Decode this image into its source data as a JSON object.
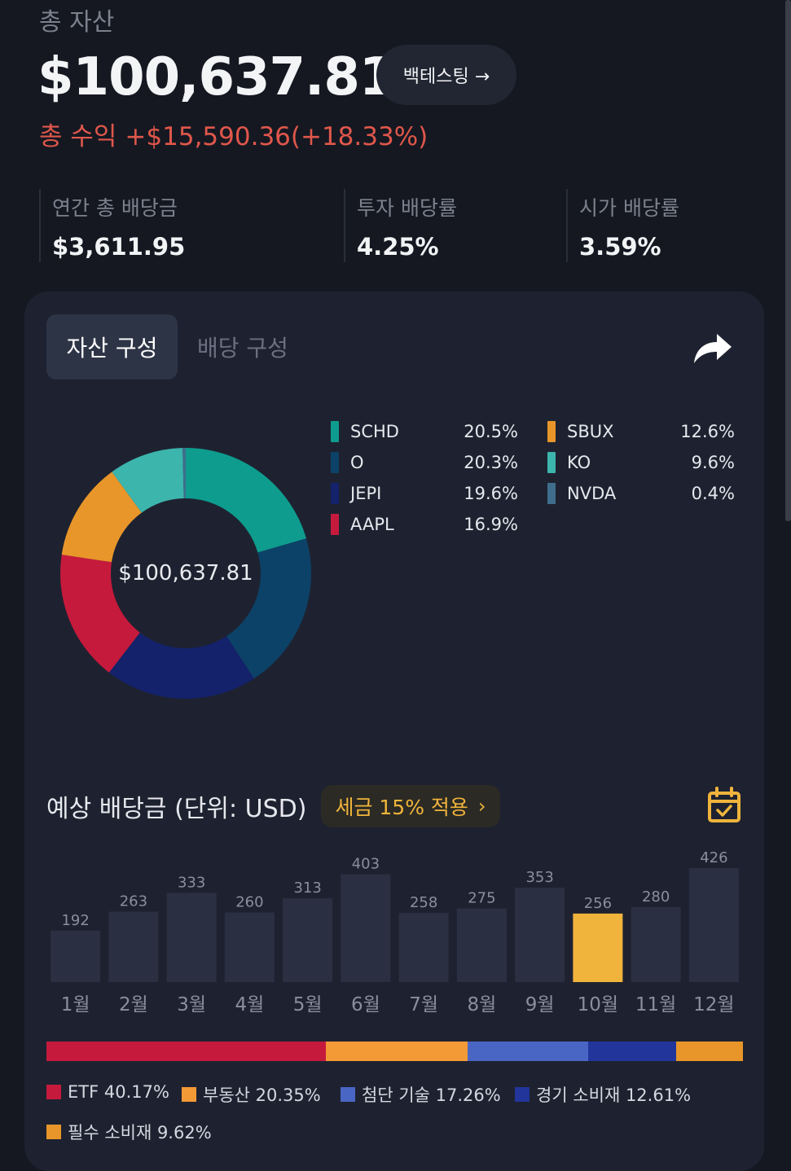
{
  "header": {
    "section_label": "총 자산",
    "total_assets": "$100,637.81",
    "backtest_button": "백테스팅 →",
    "profit_label": "총 수익",
    "profit_value": "+$15,590.36(+18.33%)"
  },
  "stats": [
    {
      "label": "연간 총 배당금",
      "value": "$3,611.95"
    },
    {
      "label": "투자 배당률",
      "value": "4.25%"
    },
    {
      "label": "시가 배당률",
      "value": "3.59%"
    }
  ],
  "tabs": {
    "active": "자산 구성",
    "inactive": "배당 구성"
  },
  "share_icon": "share-arrow-icon",
  "allocation": {
    "center_label": "$100,637.81",
    "items": [
      {
        "name": "SCHD",
        "percent": "20.5%",
        "value": 20.5,
        "color": "#0e9c8e"
      },
      {
        "name": "O",
        "percent": "20.3%",
        "value": 20.3,
        "color": "#0c4268"
      },
      {
        "name": "JEPI",
        "percent": "19.6%",
        "value": 19.6,
        "color": "#13226a"
      },
      {
        "name": "AAPL",
        "percent": "16.9%",
        "value": 16.9,
        "color": "#c51a3c"
      },
      {
        "name": "SBUX",
        "percent": "12.6%",
        "value": 12.6,
        "color": "#e8962a"
      },
      {
        "name": "KO",
        "percent": "9.6%",
        "value": 9.6,
        "color": "#3cb5ad"
      },
      {
        "name": "NVDA",
        "percent": "0.4%",
        "value": 0.4,
        "color": "#3f6e8c"
      }
    ]
  },
  "dividends": {
    "title": "예상 배당금 (단위: USD)",
    "tax_button": "세금 15% 적용",
    "calendar_icon": "calendar-check-icon",
    "highlight_color": "#f0b43c",
    "bar_color": "#2a3041"
  },
  "chart_data": {
    "type": "bar",
    "categories": [
      "1월",
      "2월",
      "3월",
      "4월",
      "5월",
      "6월",
      "7월",
      "8월",
      "9월",
      "10월",
      "11월",
      "12월"
    ],
    "values": [
      192,
      263,
      333,
      260,
      313,
      403,
      258,
      275,
      353,
      256,
      280,
      426
    ],
    "highlight_index": 9,
    "title": "예상 배당금 (단위: USD)",
    "grid": false
  },
  "sectors": [
    {
      "label": "ETF 40.17%",
      "value": 40.17,
      "color": "#c51a3c"
    },
    {
      "label": "부동산 20.35%",
      "value": 20.35,
      "color": "#f39a36"
    },
    {
      "label": "첨단 기술 17.26%",
      "value": 17.26,
      "color": "#4a66c4"
    },
    {
      "label": "경기 소비재 12.61%",
      "value": 12.61,
      "color": "#22359b"
    },
    {
      "label": "필수 소비재 9.62%",
      "value": 9.62,
      "color": "#e8962a"
    }
  ]
}
